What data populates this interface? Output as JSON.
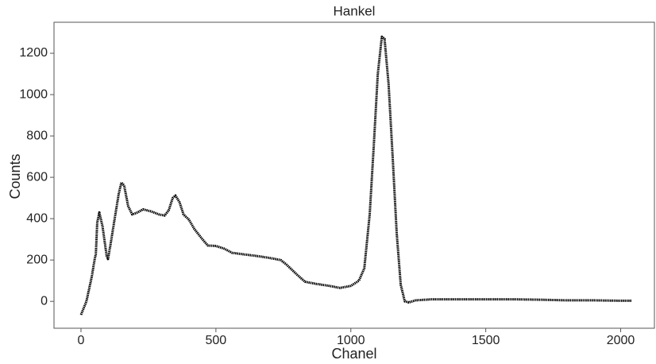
{
  "chart_data": {
    "type": "line",
    "title": "Hankel",
    "x_label": "Chanel",
    "y_label": "Counts",
    "color": "#000000",
    "x": [
      0,
      20,
      40,
      50,
      55,
      60,
      68,
      80,
      95,
      100,
      110,
      125,
      140,
      150,
      160,
      175,
      190,
      210,
      230,
      260,
      290,
      310,
      325,
      340,
      350,
      365,
      380,
      400,
      420,
      450,
      470,
      500,
      530,
      560,
      600,
      650,
      700,
      740,
      760,
      800,
      830,
      870,
      920,
      960,
      1000,
      1030,
      1050,
      1070,
      1085,
      1100,
      1115,
      1125,
      1140,
      1155,
      1170,
      1185,
      1200,
      1215,
      1240,
      1300,
      1400,
      1500,
      1600,
      1700,
      1800,
      1900,
      2000,
      2040
    ],
    "values": [
      -65,
      0,
      120,
      200,
      230,
      380,
      430,
      360,
      220,
      205,
      280,
      400,
      520,
      575,
      560,
      460,
      420,
      430,
      445,
      435,
      420,
      415,
      440,
      500,
      512,
      480,
      420,
      395,
      350,
      300,
      270,
      268,
      255,
      235,
      228,
      220,
      210,
      200,
      180,
      130,
      95,
      85,
      75,
      65,
      75,
      100,
      160,
      420,
      750,
      1100,
      1280,
      1270,
      1050,
      700,
      330,
      80,
      0,
      -5,
      5,
      10,
      10,
      10,
      10,
      8,
      5,
      5,
      3,
      3
    ],
    "xlim": [
      -100,
      2125
    ],
    "ylim": [
      -130,
      1350
    ],
    "xticks": [
      0,
      500,
      1000,
      1500,
      2000
    ],
    "yticks": [
      0,
      200,
      400,
      600,
      800,
      1000,
      1200
    ]
  }
}
